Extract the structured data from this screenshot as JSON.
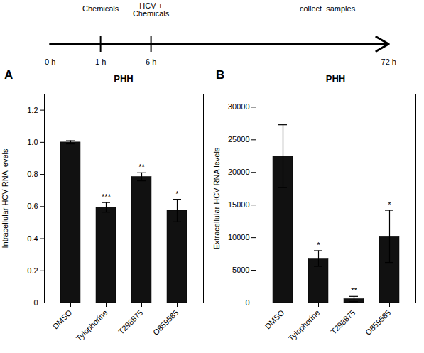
{
  "chart_data": [
    {
      "type": "timeline",
      "categories": [
        "0 h",
        "1 h",
        "6 h",
        "72 h"
      ],
      "annotations": [
        "Chemicals",
        "HCV +\nChemicals",
        "collect  samples"
      ]
    },
    {
      "type": "bar",
      "title": "PHH",
      "annotations": [
        "A"
      ],
      "ylabel": "Intracellular HCV RNA levels",
      "categories": [
        "DMSO",
        "Tylophorine",
        "T298875",
        "O859585"
      ],
      "values": [
        1.0,
        0.595,
        0.785,
        0.575
      ],
      "errors": [
        0.01,
        0.03,
        0.025,
        0.07
      ],
      "significance": [
        null,
        "***",
        "**",
        "*"
      ],
      "color": "#111111",
      "ylim": [
        0,
        1.3
      ],
      "yticks": [
        0,
        0.2,
        0.4,
        0.6,
        0.8,
        {
          "value": 1.0,
          "label": "1.0"
        },
        1.2
      ]
    },
    {
      "type": "bar",
      "title": "PHH",
      "annotations": [
        "B"
      ],
      "ylabel": "Extracellular HCV RNA levels",
      "categories": [
        "DMSO",
        "Tylophorine",
        "T298875",
        "O859585"
      ],
      "values": [
        22500,
        6800,
        600,
        10200
      ],
      "errors": [
        4800,
        1200,
        400,
        4000
      ],
      "significance": [
        null,
        "*",
        "**",
        "*"
      ],
      "color": "#111111",
      "ylim": [
        0,
        32000
      ],
      "yticks": [
        0,
        5000,
        10000,
        15000,
        20000,
        25000,
        30000
      ]
    }
  ]
}
